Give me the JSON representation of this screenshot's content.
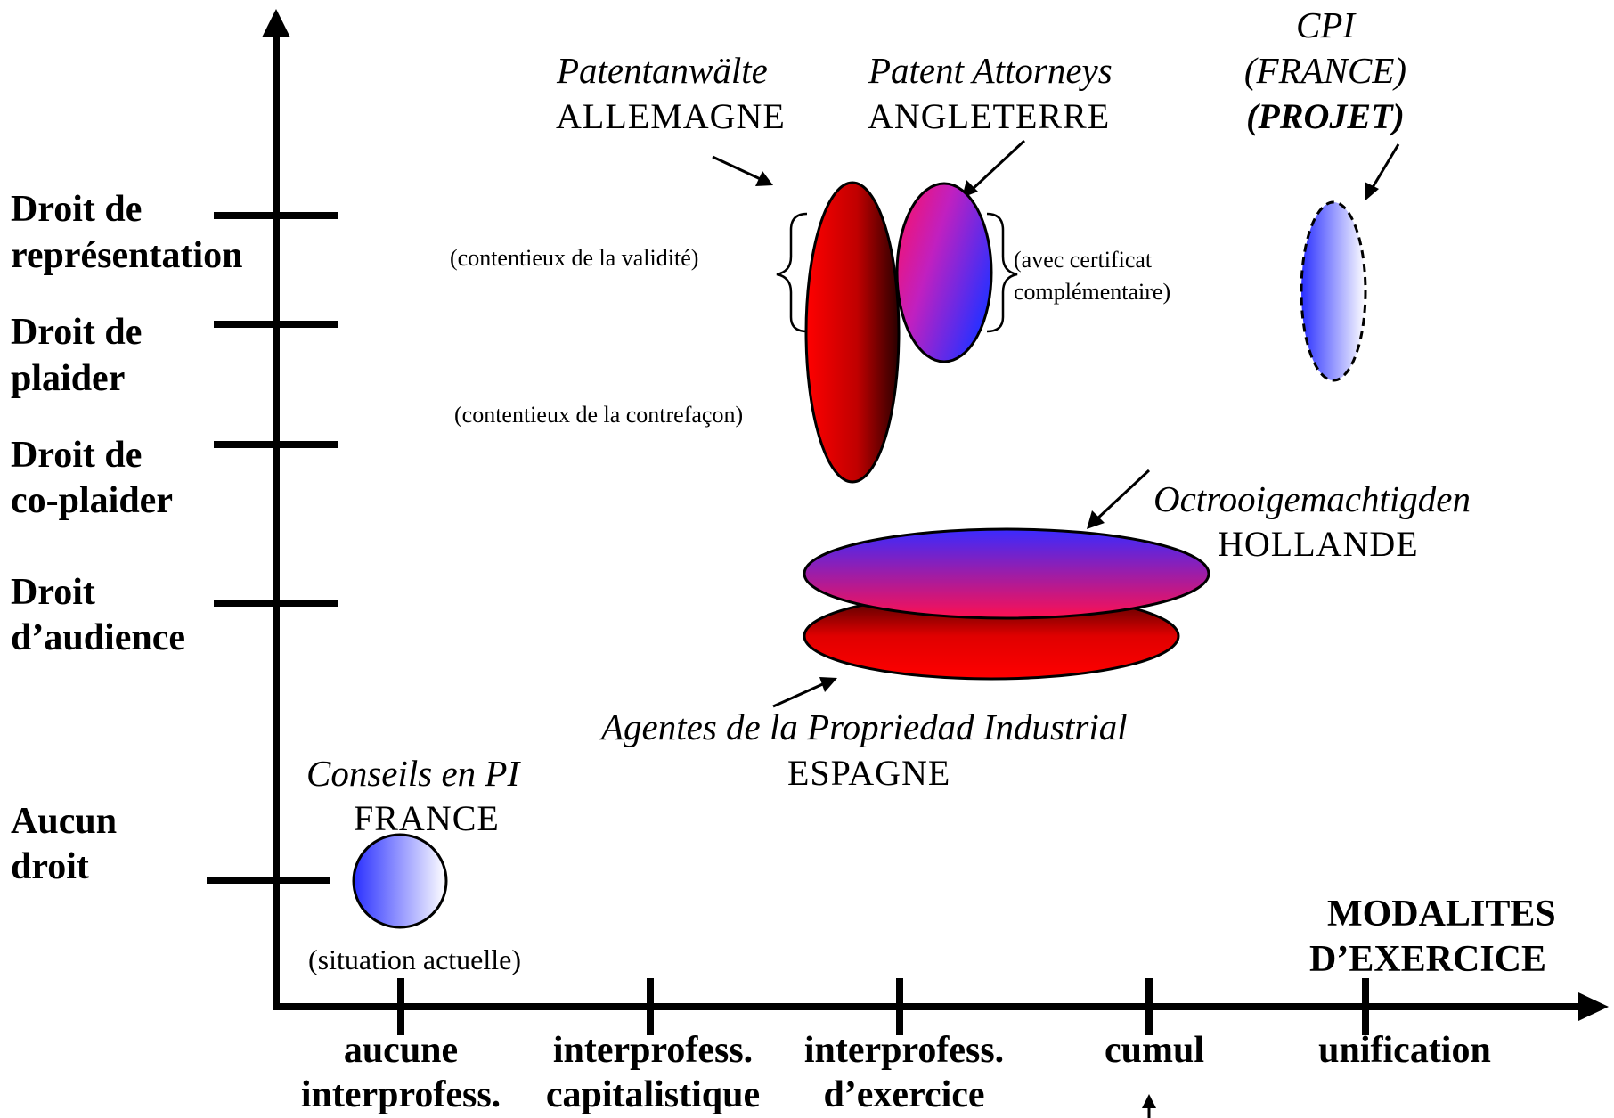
{
  "y_axis": {
    "levels": [
      {
        "line1": "Droit de",
        "line2": "représentation"
      },
      {
        "line1": "Droit de",
        "line2": "plaider"
      },
      {
        "line1": "Droit de",
        "line2": "co-plaider"
      },
      {
        "line1": "Droit",
        "line2": "d’audience"
      },
      {
        "line1": "Aucun",
        "line2": "droit"
      }
    ]
  },
  "x_axis": {
    "title_line1": "MODALITES",
    "title_line2": "D’EXERCICE",
    "categories": [
      {
        "line1": "aucune",
        "line2": "interprofess."
      },
      {
        "line1": "interprofess.",
        "line2": "capitalistique"
      },
      {
        "line1": "interprofess.",
        "line2": "d’exercice"
      },
      {
        "line1": "cumul",
        "line2": ""
      },
      {
        "line1": "unification",
        "line2": ""
      }
    ]
  },
  "entities": {
    "germany": {
      "name": "Patentanwälte",
      "country": "ALLEMAGNE"
    },
    "england": {
      "name": "Patent Attorneys",
      "country": "ANGLETERRE"
    },
    "cpi": {
      "name": "CPI",
      "country": "(FRANCE)",
      "status": "(PROJET)"
    },
    "holland": {
      "name": "Octrooigemachtigden",
      "country": "HOLLANDE"
    },
    "spain": {
      "name": "Agentes de la Propriedad Industrial",
      "country": "ESPAGNE"
    },
    "france": {
      "name": "Conseils en PI",
      "country": "FRANCE",
      "note": "(situation actuelle)"
    }
  },
  "annotations": {
    "validite": "(contentieux de la validité)",
    "contrefacon": "(contentieux de la contrefaçon)",
    "certificat_line1": "(avec certificat",
    "certificat_line2": "complémentaire)"
  },
  "colors": {
    "red": "#ff0000",
    "dark_red": "#3a0000",
    "blue": "#3a2aff",
    "magenta": "#ff1a6a",
    "white": "#ffffff"
  }
}
